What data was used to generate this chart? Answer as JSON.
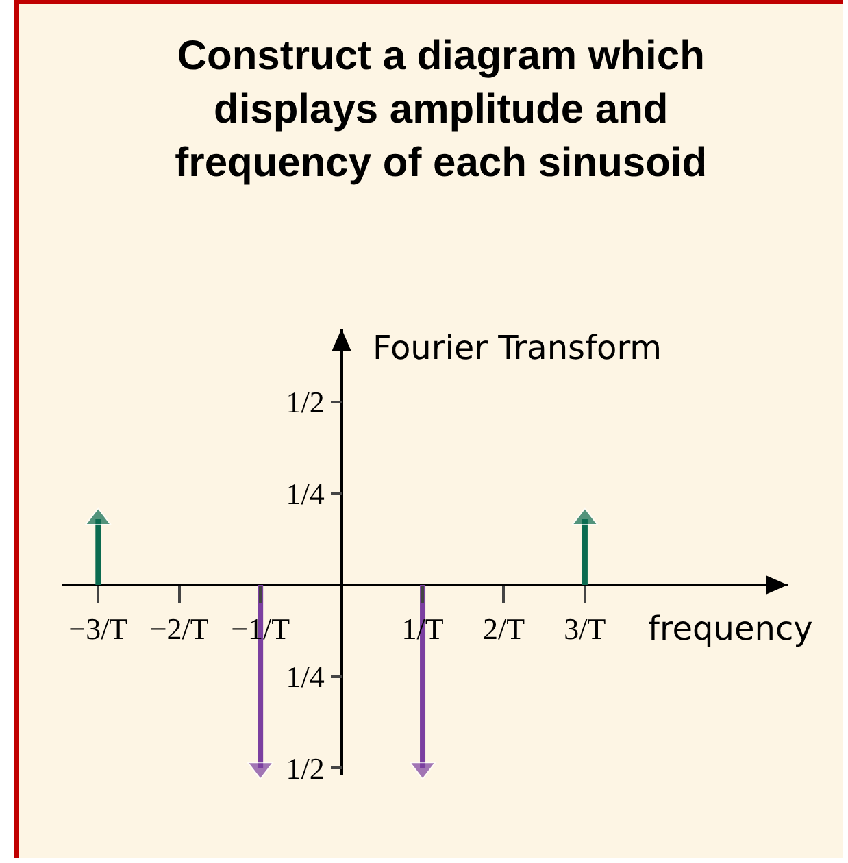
{
  "chart_data": {
    "type": "lollipop",
    "title": "Construct a diagram which displays amplitude and frequency of each sinusoid",
    "xlabel": "frequency",
    "ylabel": "Fourier Transform",
    "x": [
      -3,
      -1,
      1,
      3
    ],
    "values": [
      0.18,
      -0.5,
      -0.5,
      0.18
    ],
    "colors": [
      "#0b6b50",
      "#7b3fa0",
      "#7b3fa0",
      "#0b6b50"
    ],
    "marker": "triangle",
    "xlim": [
      -3.45,
      5.5
    ],
    "ylim": [
      -0.52,
      0.7
    ],
    "xticks": [
      {
        "value": -3,
        "label": "−3/T"
      },
      {
        "value": -2,
        "label": "−2/T"
      },
      {
        "value": -1,
        "label": "−1/T"
      },
      {
        "value": 1,
        "label": "1/T"
      },
      {
        "value": 2,
        "label": "2/T"
      },
      {
        "value": 3,
        "label": "3/T"
      }
    ],
    "yticks": [
      {
        "value": -0.5,
        "label": "1/2"
      },
      {
        "value": -0.25,
        "label": "1/4"
      },
      {
        "value": 0.25,
        "label": "1/4"
      },
      {
        "value": 0.5,
        "label": "1/2"
      }
    ],
    "grid": false
  }
}
